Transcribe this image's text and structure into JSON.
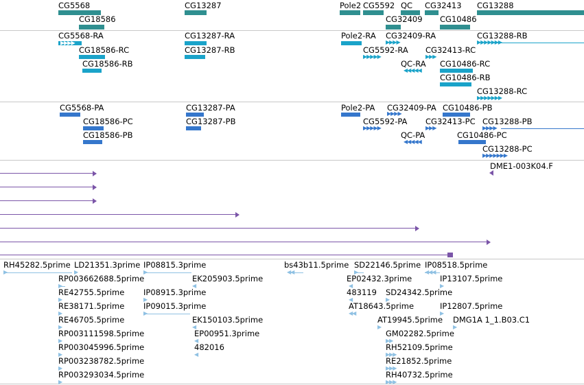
{
  "colors": {
    "gene": "#2f8f90",
    "rna": "#1aa3c9",
    "protein": "#3577cc",
    "match": "#7b55a8",
    "est": "#8fc1e3",
    "divider": "#c8c8c8"
  },
  "tracks": {
    "genes": {
      "labels": [
        "CG5568",
        "CG18586",
        "CG13287",
        "Pole2",
        "CG5592",
        "QC",
        "CG32409",
        "CG32413",
        "CG10486",
        "CG13288"
      ]
    },
    "transcripts": {
      "labels": [
        "CG5568-RA",
        "CG18586-RC",
        "CG18586-RB",
        "CG13287-RA",
        "CG13287-RB",
        "Pole2-RA",
        "CG32409-RA",
        "CG5592-RA",
        "CG32413-RC",
        "QC-RA",
        "CG10486-RC",
        "CG10486-RB",
        "CG13288-RB",
        "CG13288-RC"
      ]
    },
    "proteins": {
      "labels": [
        "CG5568-PA",
        "CG18586-PC",
        "CG18586-PB",
        "CG13287-PA",
        "CG13287-PB",
        "Pole2-PA",
        "CG32409-PA",
        "CG10486-PB",
        "CG5592-PA",
        "CG32413-PC",
        "CG13288-PB",
        "QC-PA",
        "CG10486-PC",
        "CG13288-PC"
      ]
    },
    "matches": {
      "labels": [
        "DME1-003K04.F"
      ]
    },
    "ests": {
      "labels": [
        "RH45282.5prime",
        "LD21351.3prime",
        "IP08815.3prime",
        "bs43b11.5prime",
        "SD22146.5prime",
        "IP08518.5prime",
        "RP003662688.5prime",
        "EK205903.5prime",
        "EP02432.3prime",
        "IP13107.5prime",
        "RE42755.5prime",
        "IP08915.3prime",
        "483119",
        "SD24342.5prime",
        "RE38171.5prime",
        "IP09015.3prime",
        "AT18643.5prime",
        "IP12807.5prime",
        "RE46705.5prime",
        "EK150103.5prime",
        "AT19945.5prime",
        "DMG1A 1_1.B03.C1",
        "RP003111598.5prime",
        "EP00951.3prime",
        "GM02282.5prime",
        "RP003045996.5prime",
        "482016",
        "RH52109.5prime",
        "RP003238782.5prime",
        "RE21852.5prime",
        "RP003293034.5prime",
        "RH40732.5prime"
      ]
    }
  }
}
